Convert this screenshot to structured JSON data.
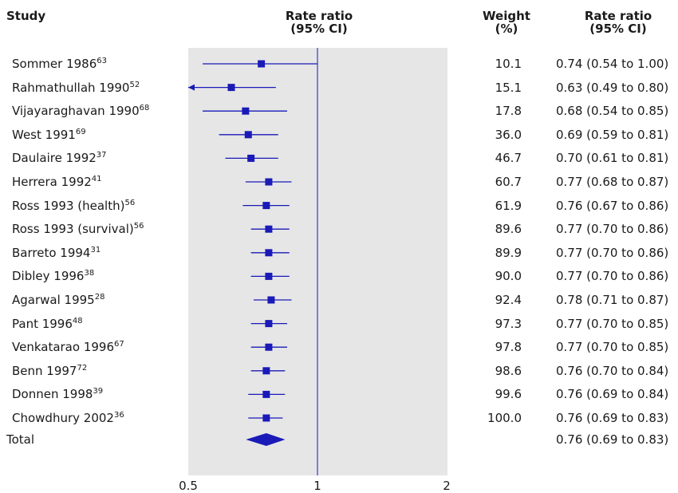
{
  "headers": {
    "study": "Study",
    "rate_ratio_line1": "Rate ratio",
    "rate_ratio_line2": "(95% CI)",
    "weight_line1": "Weight",
    "weight_line2": "(%)",
    "ci_line1": "Rate ratio",
    "ci_line2": "(95% CI)"
  },
  "total": {
    "label": "Total",
    "ci_text": "0.76 (0.69 to 0.83)"
  },
  "colors": {
    "marker": "#1a1ab8",
    "reference_line": "#3a3acc",
    "plot_background": "#e6e6e6"
  },
  "chart_data": {
    "type": "forest",
    "xlabel": "",
    "x_scale": "log",
    "xlim": [
      0.5,
      2
    ],
    "xticks": [
      "0.5",
      "1",
      "2"
    ],
    "reference_value": 1,
    "studies": [
      {
        "name": "Sommer 1986",
        "ref": "63",
        "weight": "10.1",
        "ci_text": "0.74 (0.54 to 1.00)",
        "estimate": 0.74,
        "lower": 0.54,
        "upper": 1.0
      },
      {
        "name": "Rahmathullah 1990",
        "ref": "52",
        "weight": "15.1",
        "ci_text": "0.63 (0.49 to 0.80)",
        "estimate": 0.63,
        "lower": 0.49,
        "upper": 0.8
      },
      {
        "name": "Vijayaraghavan 1990",
        "ref": "68",
        "weight": "17.8",
        "ci_text": "0.68 (0.54 to 0.85)",
        "estimate": 0.68,
        "lower": 0.54,
        "upper": 0.85
      },
      {
        "name": "West 1991",
        "ref": "69",
        "weight": "36.0",
        "ci_text": "0.69 (0.59 to 0.81)",
        "estimate": 0.69,
        "lower": 0.59,
        "upper": 0.81
      },
      {
        "name": "Daulaire 1992",
        "ref": "37",
        "weight": "46.7",
        "ci_text": "0.70 (0.61 to 0.81)",
        "estimate": 0.7,
        "lower": 0.61,
        "upper": 0.81
      },
      {
        "name": "Herrera 1992",
        "ref": "41",
        "weight": "60.7",
        "ci_text": "0.77 (0.68 to 0.87)",
        "estimate": 0.77,
        "lower": 0.68,
        "upper": 0.87
      },
      {
        "name": "Ross 1993 (health)",
        "ref": "56",
        "weight": "61.9",
        "ci_text": "0.76 (0.67 to 0.86)",
        "estimate": 0.76,
        "lower": 0.67,
        "upper": 0.86
      },
      {
        "name": "Ross 1993 (survival)",
        "ref": "56",
        "weight": "89.6",
        "ci_text": "0.77 (0.70 to 0.86)",
        "estimate": 0.77,
        "lower": 0.7,
        "upper": 0.86
      },
      {
        "name": "Barreto 1994",
        "ref": "31",
        "weight": "89.9",
        "ci_text": "0.77 (0.70 to 0.86)",
        "estimate": 0.77,
        "lower": 0.7,
        "upper": 0.86
      },
      {
        "name": "Dibley 1996",
        "ref": "38",
        "weight": "90.0",
        "ci_text": "0.77 (0.70 to 0.86)",
        "estimate": 0.77,
        "lower": 0.7,
        "upper": 0.86
      },
      {
        "name": "Agarwal 1995",
        "ref": "28",
        "weight": "92.4",
        "ci_text": "0.78 (0.71 to 0.87)",
        "estimate": 0.78,
        "lower": 0.71,
        "upper": 0.87
      },
      {
        "name": "Pant 1996",
        "ref": "48",
        "weight": "97.3",
        "ci_text": "0.77 (0.70 to 0.85)",
        "estimate": 0.77,
        "lower": 0.7,
        "upper": 0.85
      },
      {
        "name": "Venkatarao 1996",
        "ref": "67",
        "weight": "97.8",
        "ci_text": "0.77 (0.70 to 0.85)",
        "estimate": 0.77,
        "lower": 0.7,
        "upper": 0.85
      },
      {
        "name": "Benn 1997",
        "ref": "72",
        "weight": "98.6",
        "ci_text": "0.76 (0.70 to 0.84)",
        "estimate": 0.76,
        "lower": 0.7,
        "upper": 0.84
      },
      {
        "name": "Donnen 1998",
        "ref": "39",
        "weight": "99.6",
        "ci_text": "0.76 (0.69 to 0.84)",
        "estimate": 0.76,
        "lower": 0.69,
        "upper": 0.84
      },
      {
        "name": "Chowdhury 2002",
        "ref": "36",
        "weight": "100.0",
        "ci_text": "0.76 (0.69 to 0.83)",
        "estimate": 0.76,
        "lower": 0.69,
        "upper": 0.83
      }
    ],
    "overall": {
      "estimate": 0.76,
      "lower": 0.69,
      "upper": 0.83
    }
  }
}
